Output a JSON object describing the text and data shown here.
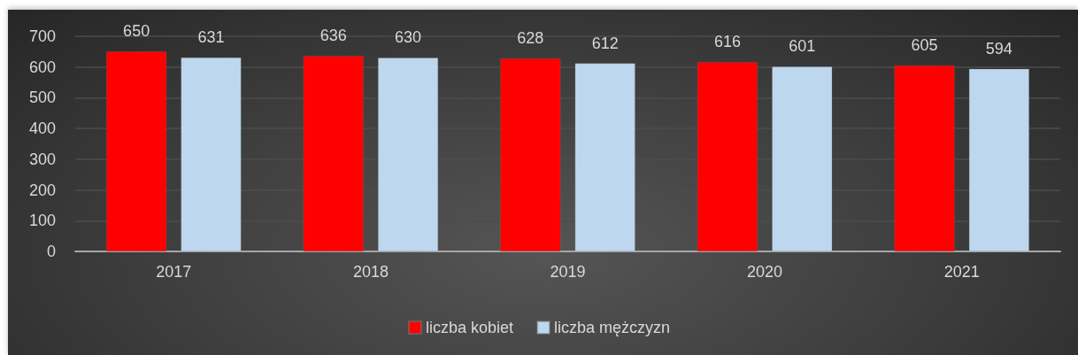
{
  "chart_data": {
    "type": "bar",
    "categories": [
      "2017",
      "2018",
      "2019",
      "2020",
      "2021"
    ],
    "series": [
      {
        "name": "liczba kobiet",
        "color": "#ff0000",
        "values": [
          650,
          636,
          628,
          616,
          605
        ]
      },
      {
        "name": "liczba mężczyzn",
        "color": "#bdd7ee",
        "values": [
          631,
          630,
          612,
          601,
          594
        ]
      }
    ],
    "ylim": [
      0,
      700
    ],
    "yticks": [
      0,
      100,
      200,
      300,
      400,
      500,
      600,
      700
    ],
    "grid": "y",
    "legend": "bottom",
    "data_labels": true
  }
}
